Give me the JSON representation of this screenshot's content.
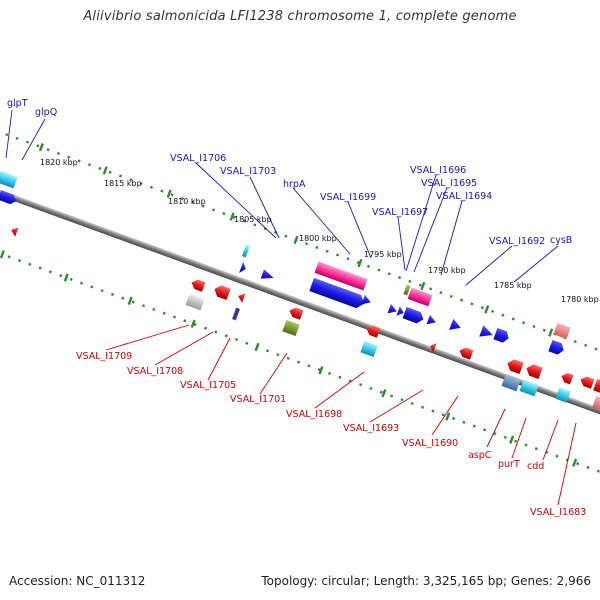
{
  "title": "Aliivibrio salmonicida LFI1238 chromosome 1, complete genome",
  "accession": "Accession: NC_011312",
  "summary": "Topology: circular; Length: 3,325,165 bp; Genes: 2,966",
  "scale_labels": [
    "1820 kbp",
    "1815 kbp",
    "1810 kbp",
    "1805 kbp",
    "1800 kbp",
    "1795 kbp",
    "1790 kbp",
    "1785 kbp",
    "1780 kbp"
  ],
  "forward_genes": [
    "glpT",
    "glpQ",
    "VSAL_I1706",
    "VSAL_I1703",
    "hrpA",
    "VSAL_I1699",
    "VSAL_I1697",
    "VSAL_I1696",
    "VSAL_I1695",
    "VSAL_I1694",
    "VSAL_I1692",
    "cysB"
  ],
  "reverse_genes": [
    "VSAL_I1709",
    "VSAL_I1708",
    "VSAL_I1705",
    "VSAL_I1701",
    "VSAL_I1698",
    "VSAL_I1693",
    "VSAL_I1690",
    "aspC",
    "purT",
    "cdd",
    "VSAL_I1683"
  ],
  "colors": {
    "forward_label": "#1515c8",
    "reverse_label": "#d40000",
    "backbone": "#7a7a7a",
    "dots": "#2e8b2e",
    "forward_gene": "#1a1ae6",
    "reverse_gene": "#e61a1a",
    "rrna": "#ff3399",
    "trna": "#33ccee",
    "misc": "#6b8e23"
  }
}
